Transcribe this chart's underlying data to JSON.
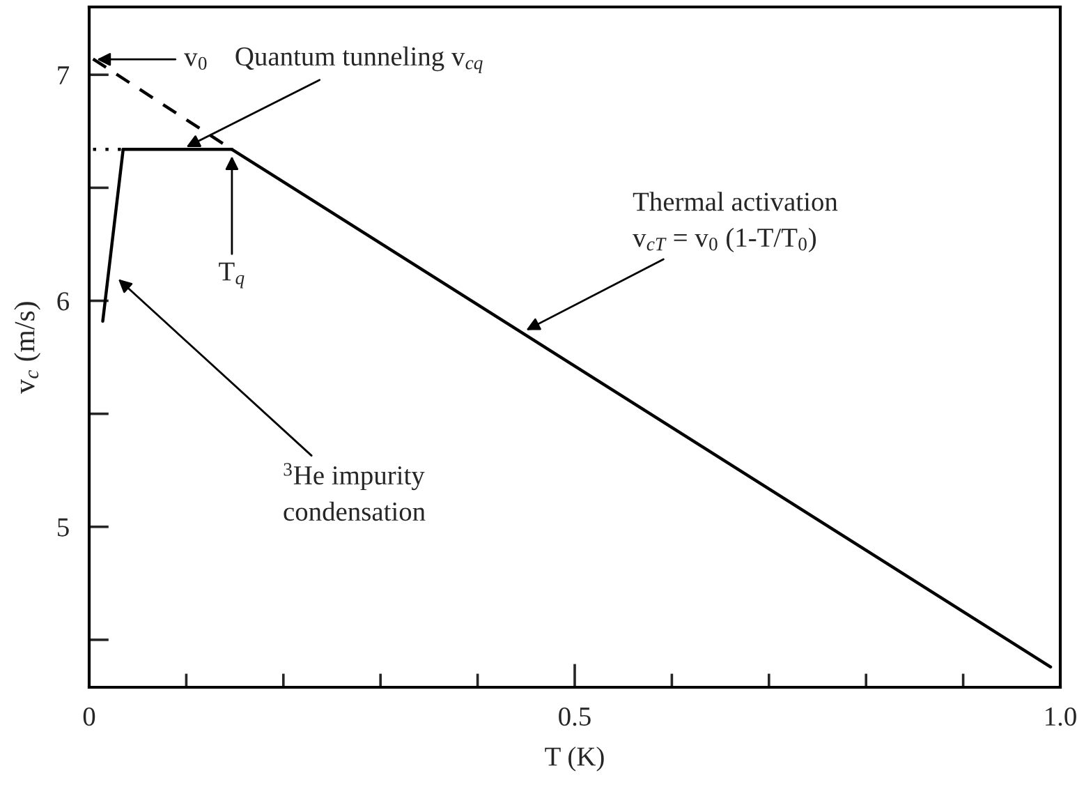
{
  "chart_data": {
    "type": "line",
    "xlabel": "T (K)",
    "ylabel": "v$_{c}$ (m/s)",
    "xlim": [
      0,
      1.0
    ],
    "ylim": [
      4.29,
      7.3
    ],
    "xticks": [
      0,
      {
        "value": 0.1,
        "label": null
      },
      {
        "value": 0.2,
        "label": null
      },
      {
        "value": 0.3,
        "label": null
      },
      {
        "value": 0.4,
        "label": null
      },
      0.5,
      {
        "value": 0.6,
        "label": null
      },
      {
        "value": 0.7,
        "label": null
      },
      {
        "value": 0.8,
        "label": null
      },
      {
        "value": 0.9,
        "label": null
      },
      {
        "value": 1.0,
        "label": "1.0"
      }
    ],
    "yticks": [
      {
        "value": 4.5,
        "label": null
      },
      5,
      {
        "value": 5.5,
        "label": null
      },
      6,
      {
        "value": 6.5,
        "label": null
      },
      7
    ],
    "grid": false,
    "legend": false,
    "marker": "none",
    "series": [
      {
        "color": "#000000",
        "line_style": "solid",
        "x": [
          0.147,
          0.99
        ],
        "values": [
          6.67,
          4.38
        ]
      },
      {
        "color": "#000000",
        "line_style": "dashed",
        "x": [
          0.004,
          0.147
        ],
        "values": [
          7.07,
          6.67
        ]
      },
      {
        "color": "#000000",
        "line_style": "solid",
        "x": [
          0.035,
          0.147
        ],
        "values": [
          6.67,
          6.67
        ]
      },
      {
        "color": "#000000",
        "line_style": "dotted",
        "x": [
          0.004,
          0.035
        ],
        "values": [
          6.67,
          6.67
        ]
      },
      {
        "color": "#000000",
        "line_style": "solid",
        "x": [
          0.014,
          0.035
        ],
        "values": [
          5.91,
          6.67
        ]
      }
    ],
    "annotations": [
      "v$_{0}$",
      {
        "text": "Quantum tunneling v$_{cq}$",
        "x": 0.1,
        "y": 6.68
      },
      {
        "text": "T$_{q}$",
        "x": 0.147,
        "y": 6.64
      },
      {
        "text": "Thermal activation\nv$_{cT}$ = v$_{0}$ (1-T/T$_{0}$)",
        "x": 0.45,
        "y": 5.87
      },
      "$^{3}$He impurity\ncondensation"
    ]
  }
}
